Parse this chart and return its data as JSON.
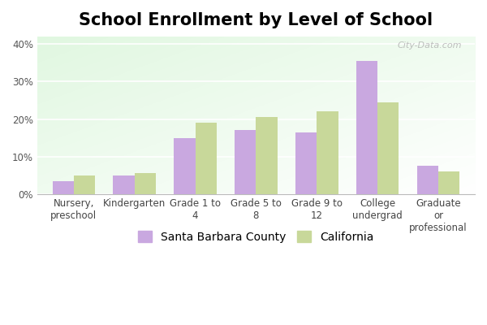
{
  "title": "School Enrollment by Level of School",
  "categories": [
    "Nursery,\npreschool",
    "Kindergarten",
    "Grade 1 to\n4",
    "Grade 5 to\n8",
    "Grade 9 to\n12",
    "College\nundergrad",
    "Graduate\nor\nprofessional"
  ],
  "santa_barbara": [
    3.5,
    5.0,
    15.0,
    17.0,
    16.5,
    35.5,
    7.5
  ],
  "california": [
    5.0,
    5.5,
    19.0,
    20.5,
    22.0,
    24.5,
    6.0
  ],
  "bar_color_sb": "#c9a8e0",
  "bar_color_ca": "#c8d89a",
  "fig_bg": "#ffffff",
  "ylim": [
    0,
    42
  ],
  "yticks": [
    0,
    10,
    20,
    30,
    40
  ],
  "legend_label_sb": "Santa Barbara County",
  "legend_label_ca": "California",
  "title_fontsize": 15,
  "tick_fontsize": 8.5,
  "legend_fontsize": 10,
  "watermark": "City-Data.com"
}
